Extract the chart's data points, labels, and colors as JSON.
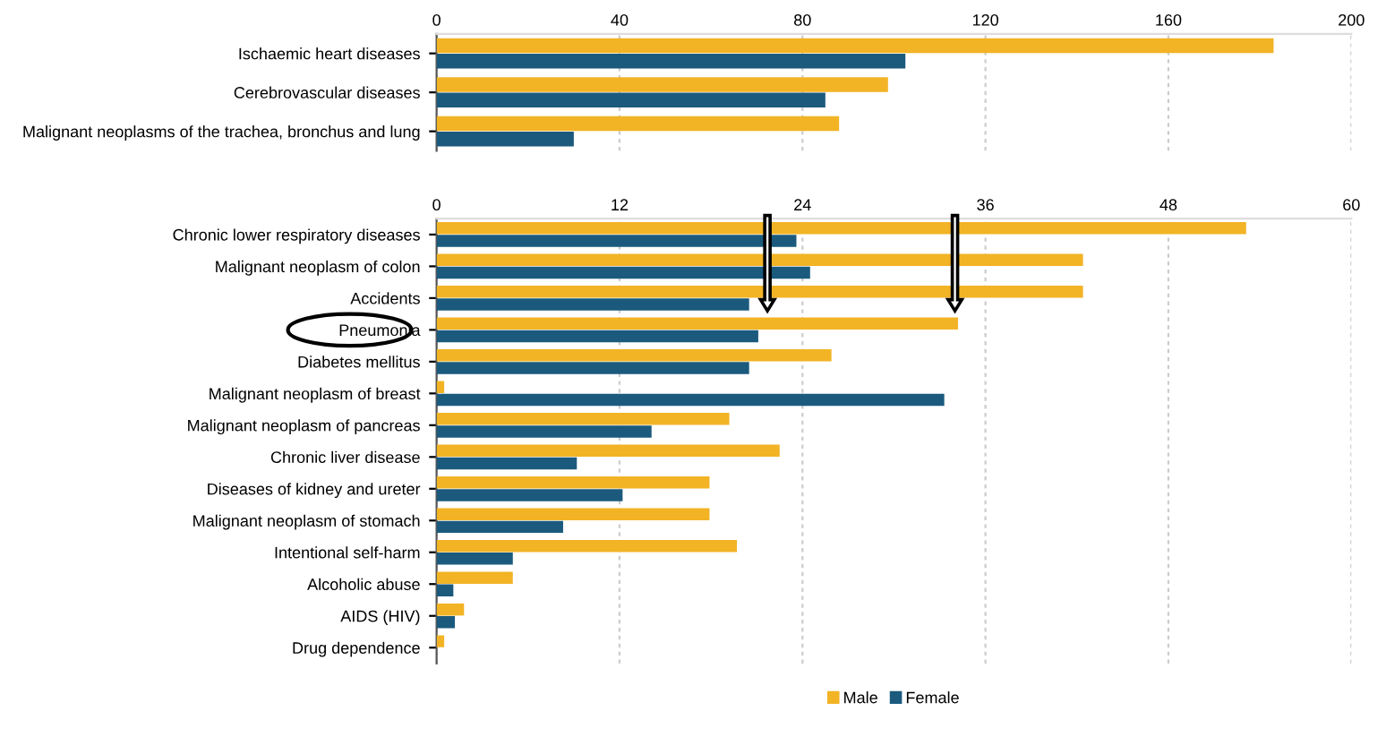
{
  "chart_data": [
    {
      "type": "bar",
      "orientation": "horizontal",
      "categories": [
        "Ischaemic heart diseases",
        "Cerebrovascular diseases",
        "Malignant neoplasms of the trachea, bronchus and lung"
      ],
      "series": [
        {
          "color": "#f2b325",
          "values": [
            183,
            98.7,
            88
          ]
        },
        {
          "color": "#1b5a7d",
          "values": [
            102.5,
            85,
            30
          ]
        }
      ],
      "xlim": [
        0,
        200
      ],
      "xticks": [
        0,
        40,
        80,
        120,
        160,
        200
      ],
      "grid": "x",
      "legend": false
    },
    {
      "type": "bar",
      "orientation": "horizontal",
      "categories": [
        "Chronic lower respiratory diseases",
        "Malignant neoplasm of colon",
        "Accidents",
        "Pneumonia",
        "Diabetes mellitus",
        "Malignant neoplasm of breast",
        "Malignant neoplasm of pancreas",
        "Chronic liver disease",
        "Diseases of kidney and ureter",
        "Malignant neoplasm of stomach",
        "Intentional self-harm",
        "Alcoholic abuse",
        "AIDS (HIV)",
        "Drug dependence"
      ],
      "series": [
        {
          "name": "Male",
          "color": "#f2b325",
          "values": [
            53.1,
            42.4,
            42.4,
            34.2,
            25.9,
            0.5,
            19.2,
            22.5,
            17.9,
            17.9,
            19.7,
            5.0,
            1.8,
            0.5
          ]
        },
        {
          "name": "Female",
          "color": "#1b5a7d",
          "values": [
            23.6,
            24.5,
            20.5,
            21.1,
            20.5,
            33.3,
            14.1,
            9.2,
            12.2,
            8.3,
            5.0,
            1.1,
            1.2,
            null
          ]
        }
      ],
      "xlim": [
        0,
        60
      ],
      "xticks": [
        0,
        12,
        24,
        36,
        48,
        60
      ],
      "grid": "x",
      "legend": "bottom"
    }
  ]
}
